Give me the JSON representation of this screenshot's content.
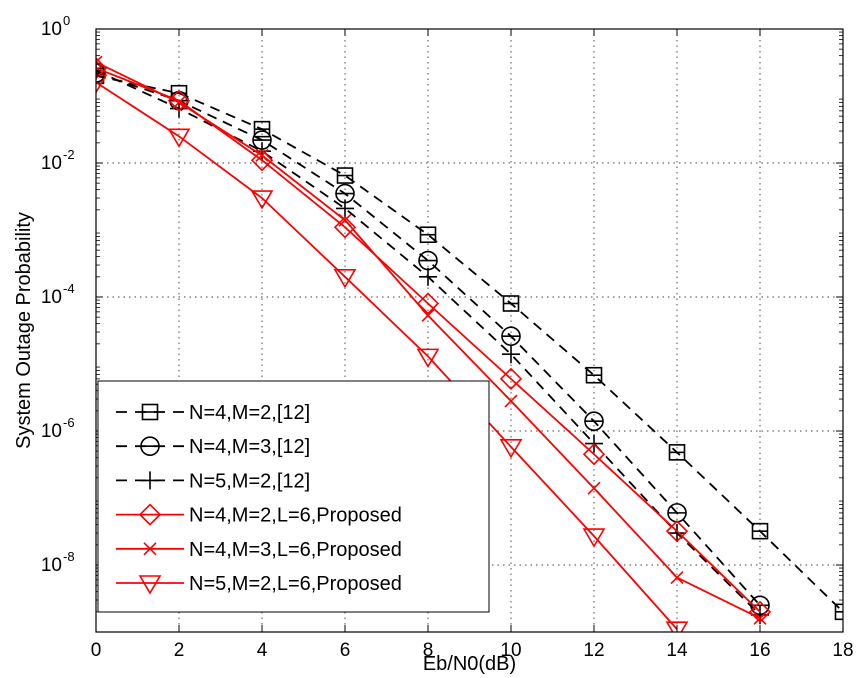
{
  "chart_data": {
    "type": "line",
    "title": "",
    "xlabel": "Eb/N0(dB)",
    "ylabel": "System Outage Probability",
    "xlim": [
      0,
      18
    ],
    "ylim": [
      1e-09,
      1
    ],
    "yscale": "log",
    "grid": true,
    "legend_position": "bottom-left",
    "x_ticks": [
      "0",
      "2",
      "4",
      "6",
      "8",
      "10",
      "12",
      "14",
      "16",
      "18"
    ],
    "y_ticks": [
      {
        "base": "10",
        "exp": "0"
      },
      {
        "base": "10",
        "exp": "-2"
      },
      {
        "base": "10",
        "exp": "-4"
      },
      {
        "base": "10",
        "exp": "-6"
      },
      {
        "base": "10",
        "exp": "-8"
      }
    ],
    "series": [
      {
        "name": "N=4,M=2,[12]",
        "color": "#000000",
        "dash": "dashed",
        "marker": "square-minus",
        "x": [
          0,
          2,
          4,
          6,
          8,
          10,
          12,
          14,
          16,
          18
        ],
        "y": [
          0.2,
          0.11,
          0.032,
          0.0065,
          0.00085,
          8e-05,
          6.8e-06,
          4.8e-07,
          3.2e-08,
          2e-09
        ]
      },
      {
        "name": "N=4,M=3,[12]",
        "color": "#000000",
        "dash": "dashed",
        "marker": "circle-minus",
        "x": [
          0,
          2,
          4,
          6,
          8,
          10,
          12,
          14,
          16
        ],
        "y": [
          0.22,
          0.085,
          0.022,
          0.0035,
          0.00035,
          2.6e-05,
          1.4e-06,
          6e-08,
          2.5e-09
        ]
      },
      {
        "name": "N=5,M=2,[12]",
        "color": "#000000",
        "dash": "dashed",
        "marker": "plus",
        "x": [
          0,
          2,
          4,
          6,
          8,
          10,
          12,
          14,
          16
        ],
        "y": [
          0.24,
          0.065,
          0.015,
          0.0021,
          0.0002,
          1.4e-05,
          6.5e-07,
          3e-08,
          1.8e-09
        ]
      },
      {
        "name": "N=4,M=2,L=6,Proposed",
        "color": "#ff0000",
        "dash": "solid",
        "marker": "diamond",
        "x": [
          0,
          2,
          4,
          6,
          8,
          10,
          12,
          14,
          16
        ],
        "y": [
          0.26,
          0.085,
          0.011,
          0.0011,
          8e-05,
          6e-06,
          4.5e-07,
          3.2e-08,
          2e-09
        ]
      },
      {
        "name": "N=4,M=3,L=6,Proposed",
        "color": "#ff0000",
        "dash": "solid",
        "marker": "x",
        "x": [
          0,
          2,
          4,
          6,
          8,
          10,
          12,
          14,
          16
        ],
        "y": [
          0.32,
          0.08,
          0.013,
          0.0014,
          5.3e-05,
          2.8e-06,
          1.4e-07,
          6.5e-09,
          1.6e-09
        ]
      },
      {
        "name": "N=5,M=2,L=6,Proposed",
        "color": "#ff0000",
        "dash": "solid",
        "marker": "triangle-down",
        "x": [
          0,
          2,
          4,
          6,
          8,
          10,
          12,
          14
        ],
        "y": [
          0.16,
          0.025,
          0.003,
          0.0002,
          1.3e-05,
          5.8e-07,
          2.7e-08,
          1.1e-09
        ]
      }
    ]
  }
}
